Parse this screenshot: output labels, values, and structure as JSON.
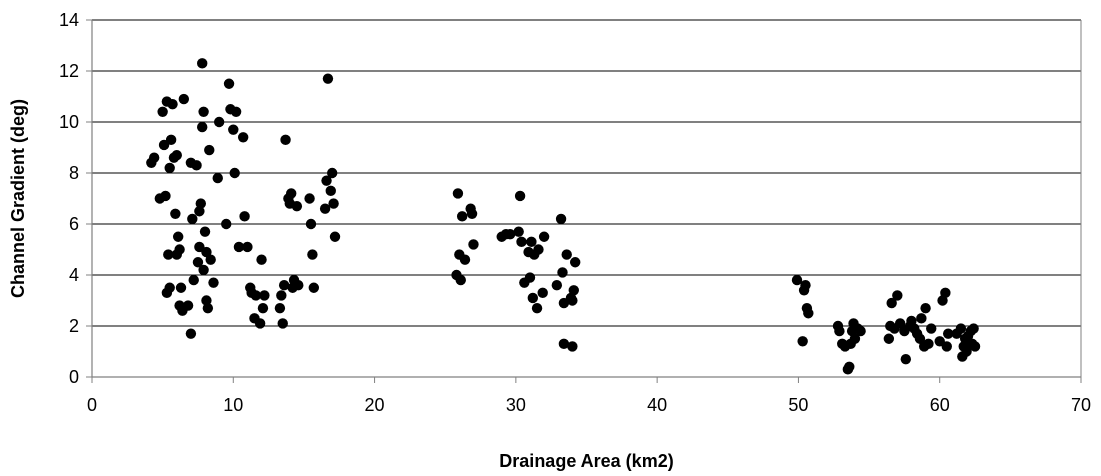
{
  "chart_data": {
    "type": "scatter",
    "xlabel": "Drainage Area (km2)",
    "ylabel": "Channel Gradient (deg)",
    "xlim": [
      0,
      70
    ],
    "ylim": [
      0,
      14
    ],
    "xticks": [
      0,
      10,
      20,
      30,
      40,
      50,
      60,
      70
    ],
    "yticks": [
      0,
      2,
      4,
      6,
      8,
      10,
      12,
      14
    ],
    "grid": "horizontal",
    "colors": {
      "marker": "#000000",
      "grid": "#000000",
      "axis": "#808080"
    },
    "series": [
      {
        "points": [
          [
            4.2,
            8.4
          ],
          [
            4.4,
            8.6
          ],
          [
            4.8,
            7.0
          ],
          [
            5.0,
            10.4
          ],
          [
            5.1,
            9.1
          ],
          [
            5.3,
            10.8
          ],
          [
            5.2,
            7.1
          ],
          [
            5.5,
            8.2
          ],
          [
            5.6,
            9.3
          ],
          [
            5.4,
            4.8
          ],
          [
            5.7,
            10.7
          ],
          [
            5.8,
            8.6
          ],
          [
            5.3,
            3.3
          ],
          [
            5.5,
            3.5
          ],
          [
            5.9,
            6.4
          ],
          [
            6.0,
            8.7
          ],
          [
            6.1,
            5.5
          ],
          [
            6.2,
            5.0
          ],
          [
            6.0,
            4.8
          ],
          [
            6.2,
            2.8
          ],
          [
            6.4,
            2.6
          ],
          [
            6.3,
            3.5
          ],
          [
            6.5,
            10.9
          ],
          [
            6.8,
            2.8
          ],
          [
            7.0,
            8.4
          ],
          [
            7.1,
            6.2
          ],
          [
            7.0,
            1.7
          ],
          [
            7.2,
            3.8
          ],
          [
            7.4,
            8.3
          ],
          [
            7.5,
            4.5
          ],
          [
            7.6,
            6.5
          ],
          [
            7.7,
            6.8
          ],
          [
            7.6,
            5.1
          ],
          [
            7.8,
            9.8
          ],
          [
            7.9,
            10.4
          ],
          [
            7.8,
            12.3
          ],
          [
            8.0,
            5.7
          ],
          [
            8.1,
            4.9
          ],
          [
            7.9,
            4.2
          ],
          [
            8.2,
            2.7
          ],
          [
            8.1,
            3.0
          ],
          [
            8.3,
            8.9
          ],
          [
            8.4,
            4.6
          ],
          [
            8.6,
            3.7
          ],
          [
            8.9,
            7.8
          ],
          [
            9.0,
            10.0
          ],
          [
            9.5,
            6.0
          ],
          [
            9.7,
            11.5
          ],
          [
            9.8,
            10.5
          ],
          [
            10.0,
            9.7
          ],
          [
            10.1,
            8.0
          ],
          [
            10.2,
            10.4
          ],
          [
            10.4,
            5.1
          ],
          [
            10.7,
            9.4
          ],
          [
            10.8,
            6.3
          ],
          [
            11.0,
            5.1
          ],
          [
            11.2,
            3.5
          ],
          [
            11.3,
            3.3
          ],
          [
            11.5,
            2.3
          ],
          [
            11.6,
            3.2
          ],
          [
            11.9,
            2.1
          ],
          [
            12.0,
            4.6
          ],
          [
            12.1,
            2.7
          ],
          [
            12.2,
            3.2
          ],
          [
            13.3,
            2.7
          ],
          [
            13.4,
            3.2
          ],
          [
            13.6,
            3.6
          ],
          [
            13.5,
            2.1
          ],
          [
            13.7,
            9.3
          ],
          [
            13.9,
            7.0
          ],
          [
            14.0,
            6.8
          ],
          [
            14.1,
            7.2
          ],
          [
            14.2,
            3.5
          ],
          [
            14.3,
            3.8
          ],
          [
            14.5,
            6.7
          ],
          [
            14.6,
            3.6
          ],
          [
            15.4,
            7.0
          ],
          [
            15.5,
            6.0
          ],
          [
            15.6,
            4.8
          ],
          [
            15.7,
            3.5
          ],
          [
            16.5,
            6.6
          ],
          [
            16.6,
            7.7
          ],
          [
            16.7,
            11.7
          ],
          [
            16.9,
            7.3
          ],
          [
            17.0,
            8.0
          ],
          [
            17.1,
            6.8
          ],
          [
            17.2,
            5.5
          ],
          [
            25.8,
            4.0
          ],
          [
            25.9,
            7.2
          ],
          [
            26.0,
            4.8
          ],
          [
            26.1,
            3.8
          ],
          [
            26.2,
            6.3
          ],
          [
            26.4,
            4.6
          ],
          [
            26.8,
            6.6
          ],
          [
            26.9,
            6.4
          ],
          [
            27.0,
            5.2
          ],
          [
            29.0,
            5.5
          ],
          [
            29.3,
            5.6
          ],
          [
            29.6,
            5.6
          ],
          [
            30.2,
            5.7
          ],
          [
            30.3,
            7.1
          ],
          [
            30.4,
            5.3
          ],
          [
            30.6,
            3.7
          ],
          [
            30.9,
            4.9
          ],
          [
            31.0,
            3.9
          ],
          [
            31.1,
            5.3
          ],
          [
            31.2,
            3.1
          ],
          [
            31.3,
            4.8
          ],
          [
            31.5,
            2.7
          ],
          [
            31.6,
            5.0
          ],
          [
            31.9,
            3.3
          ],
          [
            32.0,
            5.5
          ],
          [
            32.9,
            3.6
          ],
          [
            33.2,
            6.2
          ],
          [
            33.3,
            4.1
          ],
          [
            33.4,
            2.9
          ],
          [
            33.6,
            4.8
          ],
          [
            33.4,
            1.3
          ],
          [
            33.9,
            3.1
          ],
          [
            34.0,
            3.0
          ],
          [
            34.1,
            3.4
          ],
          [
            34.2,
            4.5
          ],
          [
            34.0,
            1.2
          ],
          [
            49.9,
            3.8
          ],
          [
            50.3,
            1.4
          ],
          [
            50.4,
            3.4
          ],
          [
            50.5,
            3.6
          ],
          [
            50.6,
            2.7
          ],
          [
            50.7,
            2.5
          ],
          [
            52.8,
            2.0
          ],
          [
            52.9,
            1.8
          ],
          [
            53.1,
            1.3
          ],
          [
            53.3,
            1.2
          ],
          [
            53.5,
            0.3
          ],
          [
            53.6,
            0.4
          ],
          [
            53.7,
            1.3
          ],
          [
            53.8,
            1.8
          ],
          [
            53.9,
            2.1
          ],
          [
            54.0,
            1.5
          ],
          [
            54.2,
            1.9
          ],
          [
            54.4,
            1.8
          ],
          [
            56.4,
            1.5
          ],
          [
            56.5,
            2.0
          ],
          [
            56.6,
            2.9
          ],
          [
            56.8,
            1.9
          ],
          [
            57.0,
            3.2
          ],
          [
            57.2,
            2.1
          ],
          [
            57.5,
            1.8
          ],
          [
            57.6,
            0.7
          ],
          [
            57.9,
            2.0
          ],
          [
            58.0,
            2.2
          ],
          [
            58.2,
            1.9
          ],
          [
            58.4,
            1.7
          ],
          [
            58.6,
            1.5
          ],
          [
            58.7,
            2.3
          ],
          [
            58.9,
            1.2
          ],
          [
            59.0,
            2.7
          ],
          [
            59.2,
            1.3
          ],
          [
            59.4,
            1.9
          ],
          [
            60.0,
            1.4
          ],
          [
            60.2,
            3.0
          ],
          [
            60.4,
            3.3
          ],
          [
            60.5,
            1.2
          ],
          [
            60.6,
            1.7
          ],
          [
            61.2,
            1.7
          ],
          [
            61.5,
            1.9
          ],
          [
            61.6,
            0.8
          ],
          [
            61.7,
            1.2
          ],
          [
            61.8,
            1.5
          ],
          [
            61.9,
            1.0
          ],
          [
            62.0,
            1.6
          ],
          [
            62.2,
            1.8
          ],
          [
            62.3,
            1.3
          ],
          [
            62.4,
            1.9
          ],
          [
            62.5,
            1.2
          ]
        ]
      }
    ]
  }
}
